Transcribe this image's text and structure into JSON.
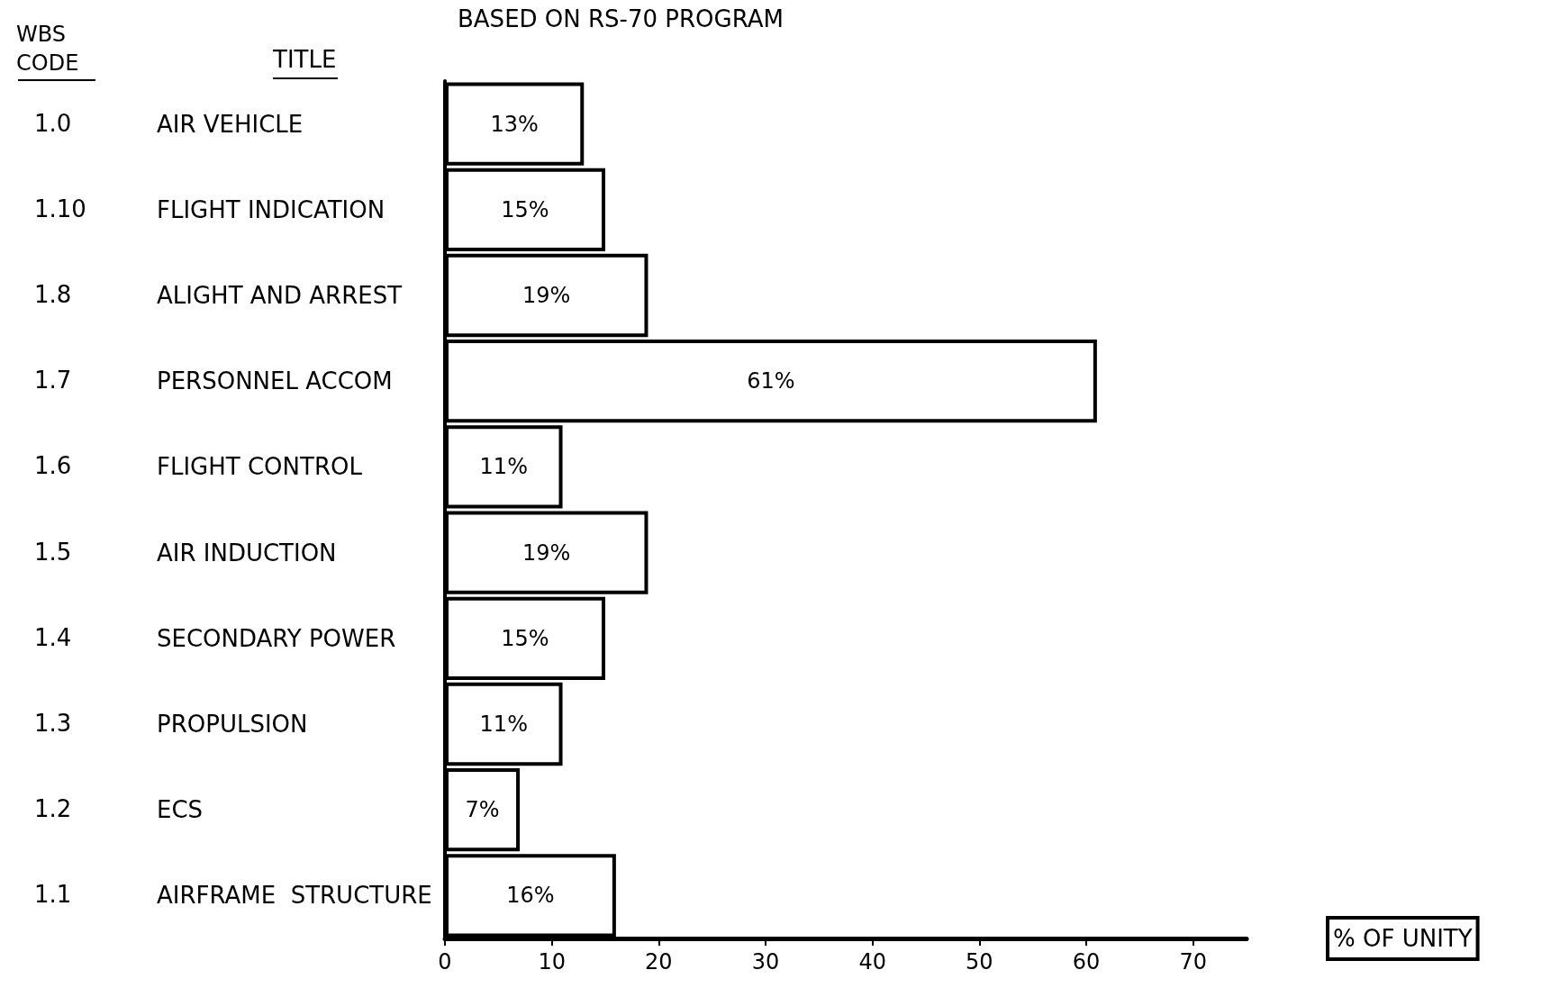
{
  "chart_data": {
    "type": "bar",
    "orientation": "horizontal",
    "title": "BASED ON RS-70 PROGRAM",
    "xlabel": "% OF UNITY",
    "ylabel": "TITLE",
    "categories": [
      "AIR VEHICLE",
      "FLIGHT INDICATION",
      "ALIGHT AND ARREST",
      "PERSONNEL ACCOM",
      "FLIGHT CONTROL",
      "AIR INDUCTION",
      "SECONDARY POWER",
      "PROPULSION",
      "ECS",
      "AIRFRAME  STRUCTURE"
    ],
    "values": [
      13,
      15,
      19,
      61,
      11,
      19,
      15,
      11,
      7,
      16
    ],
    "value_labels": [
      "13%",
      "15%",
      "19%",
      "61%",
      "11%",
      "19%",
      "15%",
      "11%",
      "7%",
      "16%"
    ],
    "color": "#ffffff",
    "xlim": [
      0,
      75
    ],
    "xticks": [
      0,
      10,
      20,
      30,
      40,
      50,
      60,
      70
    ],
    "grid": false,
    "annotations": [
      "WBS\nCODE",
      "1.0",
      "1.10",
      "1.8",
      "1.7",
      "1.6",
      "1.5",
      "1.4",
      "1.3",
      "1.2",
      "1.1"
    ]
  }
}
